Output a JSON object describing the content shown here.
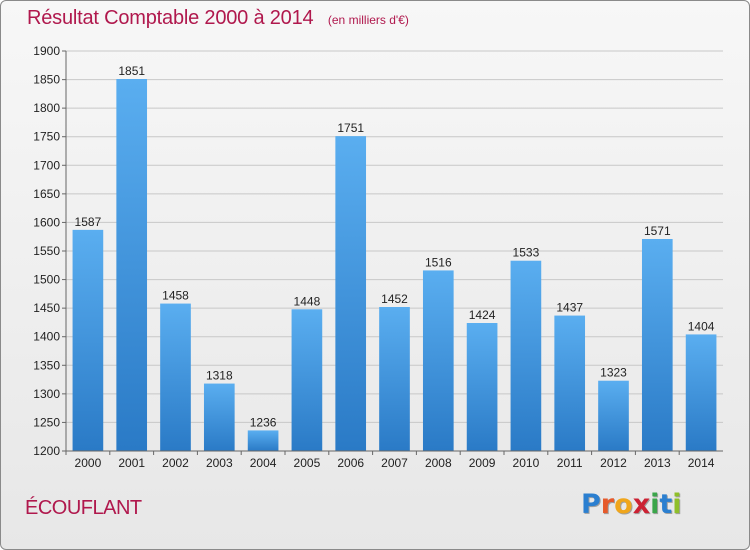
{
  "chart_data": {
    "type": "bar",
    "title": "Résultat Comptable 2000 à 2014",
    "subtitle": "(en milliers d'€)",
    "xlabel": "",
    "ylabel": "",
    "categories": [
      "2000",
      "2001",
      "2002",
      "2003",
      "2004",
      "2005",
      "2006",
      "2007",
      "2008",
      "2009",
      "2010",
      "2011",
      "2012",
      "2013",
      "2014"
    ],
    "values": [
      1587,
      1851,
      1458,
      1318,
      1236,
      1448,
      1751,
      1452,
      1516,
      1424,
      1533,
      1437,
      1323,
      1571,
      1404
    ],
    "ylim": [
      1200,
      1900
    ],
    "yticks": [
      1200,
      1250,
      1300,
      1350,
      1400,
      1450,
      1500,
      1550,
      1600,
      1650,
      1700,
      1750,
      1800,
      1850,
      1900
    ],
    "grid": "horizontal",
    "bar_color": "#3d8fd8"
  },
  "footer": {
    "place": "ÉCOUFLANT",
    "logo_letters": [
      "P",
      "r",
      "o",
      "x",
      "i",
      "t",
      "i"
    ],
    "logo_colors": [
      "#2b7fd0",
      "#e65a2b",
      "#f0a61c",
      "#cc2233",
      "#3aa54a",
      "#2b7fd0",
      "#8fbf2a"
    ]
  }
}
